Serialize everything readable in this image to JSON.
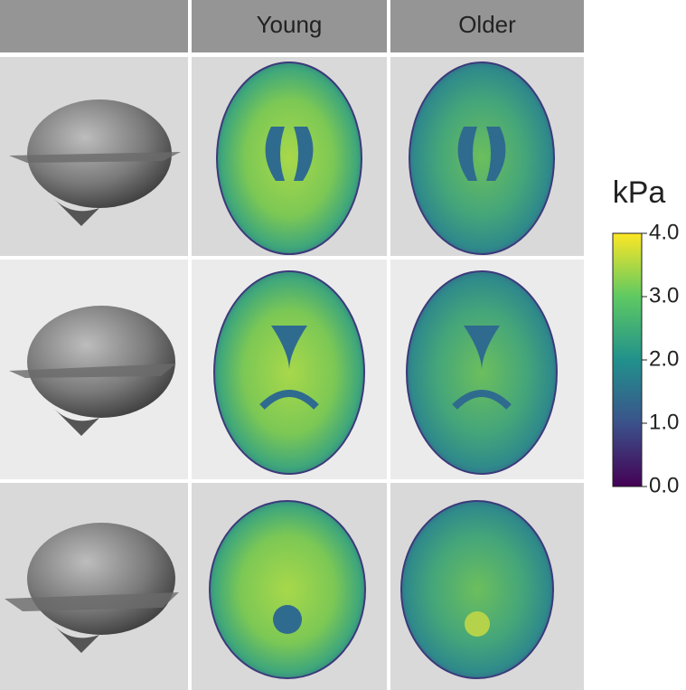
{
  "header": {
    "columns": [
      "Young",
      "Older"
    ]
  },
  "colorbar": {
    "title": "kPa",
    "lim": [
      0,
      4
    ],
    "ticks": [
      {
        "value": 0,
        "label": "0.0"
      },
      {
        "value": 1,
        "label": "1.0"
      },
      {
        "value": 2,
        "label": "2.0"
      },
      {
        "value": 3,
        "label": "3.0"
      },
      {
        "value": 4,
        "label": "4.0"
      }
    ]
  }
}
